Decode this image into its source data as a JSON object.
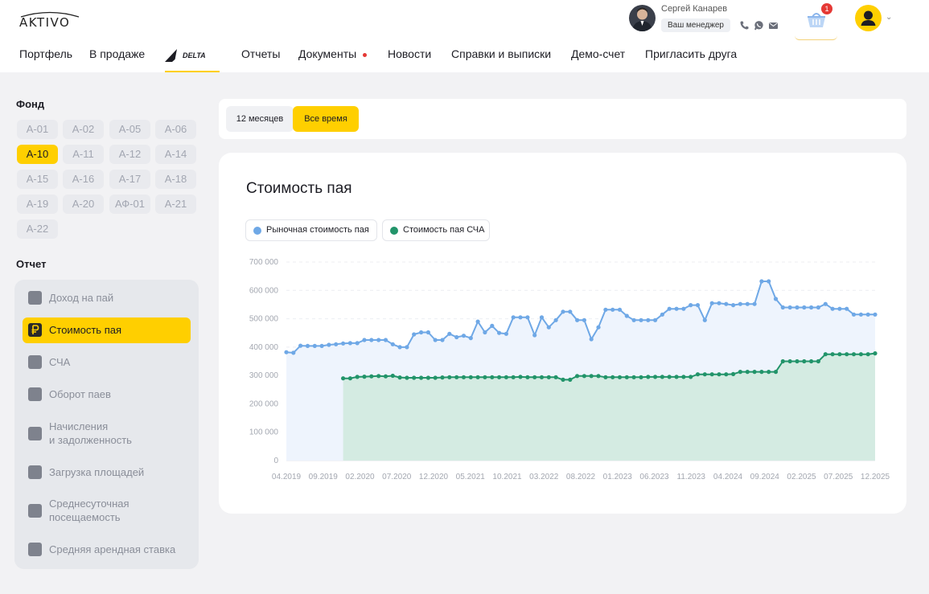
{
  "header": {
    "logo_text": "AKTIVO",
    "manager": {
      "name": "Сергей Канарев",
      "badge": "Ваш менеджер"
    },
    "basket_count": "1",
    "nav": [
      {
        "label": "Портфель"
      },
      {
        "label": "В продаже"
      },
      {
        "label": "DELTA"
      },
      {
        "label": "Отчеты"
      },
      {
        "label": "Документы"
      },
      {
        "label": "Новости"
      },
      {
        "label": "Справки и выписки"
      },
      {
        "label": "Демо-счет"
      },
      {
        "label": "Пригласить друга"
      }
    ]
  },
  "sidebar": {
    "fund_title": "Фонд",
    "funds": [
      {
        "label": "А-01",
        "active": false
      },
      {
        "label": "А-02",
        "active": false
      },
      {
        "label": "А-05",
        "active": false
      },
      {
        "label": "А-06",
        "active": false
      },
      {
        "label": "А-10",
        "active": true
      },
      {
        "label": "А-11",
        "active": false
      },
      {
        "label": "А-12",
        "active": false
      },
      {
        "label": "А-14",
        "active": false
      },
      {
        "label": "А-15",
        "active": false
      },
      {
        "label": "А-16",
        "active": false
      },
      {
        "label": "А-17",
        "active": false
      },
      {
        "label": "А-18",
        "active": false
      },
      {
        "label": "А-19",
        "active": false
      },
      {
        "label": "А-20",
        "active": false
      },
      {
        "label": "АФ-01",
        "active": false
      },
      {
        "label": "А-21",
        "active": false
      },
      {
        "label": "А-22",
        "active": false
      }
    ],
    "report_title": "Отчет",
    "reports": [
      {
        "line1": "Доход на пай",
        "line2": "",
        "icon": "trend-up-icon",
        "active": false
      },
      {
        "line1": "Стоимость пая",
        "line2": "",
        "icon": "ruble-icon",
        "active": true
      },
      {
        "line1": "СЧА",
        "line2": "",
        "icon": "calculator-icon",
        "active": false
      },
      {
        "line1": "Оборот паев",
        "line2": "",
        "icon": "exchange-icon",
        "active": false
      },
      {
        "line1": "Начисления",
        "line2": "и задолженность",
        "icon": "documents-icon",
        "active": false
      },
      {
        "line1": "Загрузка площадей",
        "line2": "",
        "icon": "area-icon",
        "active": false
      },
      {
        "line1": "Среднесуточная",
        "line2": "посещаемость",
        "icon": "visitors-icon",
        "active": false
      },
      {
        "line1": "Средняя арендная ставка",
        "line2": "",
        "icon": "rent-icon",
        "active": false
      }
    ]
  },
  "period": {
    "options": [
      {
        "label": "12 месяцев",
        "active": false
      },
      {
        "label": "Все время",
        "active": true
      }
    ]
  },
  "chart": {
    "title": "Стоимость пая",
    "legend": [
      {
        "label": "Рыночная стоимость пая",
        "color": "#6fa8e6"
      },
      {
        "label": "Стоимость пая СЧА",
        "color": "#22946a"
      }
    ]
  },
  "chart_data": {
    "type": "area",
    "title": "Стоимость пая",
    "ylim": [
      0,
      700000
    ],
    "y_ticks": [
      "0",
      "100 000",
      "200 000",
      "300 000",
      "400 000",
      "500 000",
      "600 000",
      "700 000"
    ],
    "x_ticks": [
      "04.2019",
      "09.2019",
      "02.2020",
      "07.2020",
      "12.2020",
      "05.2021",
      "10.2021",
      "03.2022",
      "08.2022",
      "01.2023",
      "06.2023",
      "11.2023",
      "04.2024",
      "09.2024",
      "02.2025",
      "07.2025",
      "12.2025"
    ],
    "grid": true,
    "series": [
      {
        "name": "Рыночная стоимость пая",
        "color": "#6fa8e6",
        "start_index": 0,
        "values": [
          382000,
          380000,
          405000,
          404000,
          404000,
          404000,
          408000,
          410000,
          413000,
          414000,
          414000,
          425000,
          425000,
          425000,
          425000,
          410000,
          400000,
          400000,
          445000,
          452000,
          452000,
          425000,
          425000,
          447000,
          435000,
          440000,
          432000,
          490000,
          452000,
          475000,
          450000,
          447000,
          505000,
          505000,
          505000,
          442000,
          505000,
          470000,
          495000,
          525000,
          525000,
          495000,
          495000,
          428000,
          470000,
          532000,
          532000,
          532000,
          510000,
          495000,
          495000,
          495000,
          495000,
          515000,
          535000,
          535000,
          535000,
          548000,
          548000,
          495000,
          555000,
          555000,
          552000,
          548000,
          552000,
          552000,
          552000,
          632000,
          632000,
          570000,
          540000,
          540000,
          540000,
          540000,
          540000,
          540000,
          552000,
          535000,
          535000,
          535000,
          515000,
          515000,
          515000,
          515000
        ],
        "fill": "#eef4fd"
      },
      {
        "name": "Стоимость пая СЧА",
        "color": "#22946a",
        "start_index": 8,
        "values": [
          290000,
          290000,
          295000,
          296000,
          297000,
          298000,
          297000,
          299000,
          293000,
          292000,
          292000,
          292000,
          292000,
          292000,
          293000,
          294000,
          294000,
          294000,
          294000,
          294000,
          294000,
          294000,
          294000,
          294000,
          294000,
          295000,
          294000,
          294000,
          294000,
          294000,
          294000,
          285000,
          285000,
          298000,
          298000,
          298000,
          298000,
          294000,
          294000,
          294000,
          294000,
          294000,
          294000,
          295000,
          295000,
          295000,
          295000,
          295000,
          295000,
          295000,
          304000,
          304000,
          304000,
          304000,
          304000,
          305000,
          313000,
          313000,
          313000,
          313000,
          313000,
          313000,
          350000,
          350000,
          350000,
          350000,
          350000,
          350000,
          375000,
          375000,
          375000,
          375000,
          375000,
          375000,
          375000,
          378000
        ],
        "fill": "#d4ebe2"
      }
    ]
  }
}
